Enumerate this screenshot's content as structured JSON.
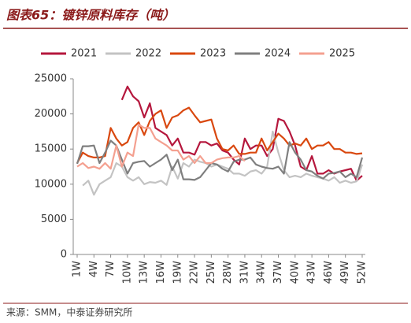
{
  "chart_data": {
    "type": "line",
    "title": "图表65：镀锌原料库存（吨）",
    "source": "来源：SMM，中泰证券研究所",
    "categories": [
      "1W",
      null,
      null,
      "4W",
      null,
      null,
      "7W",
      null,
      null,
      "10W",
      null,
      null,
      "13W",
      null,
      null,
      "16W",
      null,
      null,
      "19W",
      null,
      null,
      "22W",
      null,
      null,
      "25W",
      null,
      null,
      "28W",
      null,
      null,
      "31W",
      null,
      null,
      "34W",
      null,
      null,
      "37W",
      null,
      null,
      "40W",
      null,
      null,
      "43W",
      null,
      null,
      "46W",
      null,
      null,
      "49W",
      null,
      null,
      "52W"
    ],
    "ylim": [
      0,
      25000
    ],
    "yticks": [
      0,
      5000,
      10000,
      15000,
      20000,
      25000
    ],
    "series": [
      {
        "name": "2021",
        "color": "#b5173d",
        "values": [
          null,
          null,
          null,
          null,
          null,
          null,
          null,
          null,
          22000,
          23900,
          22500,
          21800,
          19500,
          21500,
          18000,
          17500,
          17000,
          15500,
          16500,
          14500,
          14500,
          14200,
          16000,
          16000,
          15500,
          15800,
          14800,
          14500,
          13500,
          12800,
          16500,
          15000,
          15500,
          15500,
          14000,
          15000,
          19300,
          19000,
          17500,
          15500,
          12500,
          12000,
          14000,
          11500,
          11500,
          12000,
          11500,
          11800,
          12000,
          12200,
          10500,
          11200
        ]
      },
      {
        "name": "2022",
        "color": "#c3c3c3",
        "values": [
          null,
          9800,
          10500,
          8500,
          10000,
          10500,
          11000,
          13000,
          12500,
          11000,
          10500,
          11000,
          10000,
          10300,
          10200,
          10500,
          9900,
          12500,
          10800,
          13000,
          12500,
          13500,
          13200,
          13000,
          12500,
          12800,
          12500,
          12200,
          11500,
          11500,
          11200,
          11800,
          12000,
          11500,
          12500,
          17500,
          14500,
          12000,
          11000,
          11200,
          11000,
          11500,
          11200,
          11000,
          10800,
          10500,
          11000,
          10200,
          10500,
          10200,
          10400,
          12800
        ]
      },
      {
        "name": "2023",
        "color": "#d9480f",
        "values": [
          13000,
          14500,
          14000,
          13800,
          13800,
          14000,
          18000,
          16500,
          15500,
          16000,
          18000,
          18800,
          17000,
          19000,
          20000,
          20500,
          18000,
          19500,
          19800,
          20500,
          20900,
          19800,
          18800,
          19000,
          19200,
          16500,
          15000,
          14800,
          15500,
          14300,
          14300,
          14500,
          14500,
          16500,
          14800,
          16000,
          17200,
          16500,
          15500,
          15800,
          15500,
          16500,
          15000,
          15500,
          15500,
          16000,
          15000,
          15000,
          14500,
          14500,
          14300,
          14400
        ]
      },
      {
        "name": "2024",
        "color": "#7f7f7f",
        "values": [
          12900,
          15400,
          15400,
          15500,
          13000,
          14500,
          16200,
          15500,
          13500,
          11500,
          13000,
          13200,
          13300,
          12500,
          13000,
          13500,
          14200,
          12000,
          13500,
          10700,
          10700,
          10600,
          11000,
          12000,
          13000,
          12800,
          12200,
          11800,
          13200,
          13500,
          13500,
          13800,
          12800,
          12500,
          12300,
          12200,
          12500,
          11500,
          16000,
          14500,
          13500,
          12000,
          11800,
          11200,
          10800,
          11500,
          11600,
          11800,
          11000,
          11500,
          11000,
          13800
        ]
      },
      {
        "name": "2025",
        "color": "#f4a090",
        "values": [
          12500,
          13000,
          12300,
          12500,
          12200,
          13000,
          12200,
          15500,
          12500,
          14500,
          14000,
          18500,
          18000,
          18000,
          16500,
          16000,
          15500,
          14800,
          14800,
          13500,
          14000,
          13000,
          14000,
          13000,
          13000,
          13500,
          13700,
          13800,
          13800,
          14000,
          13300,
          null,
          null,
          null,
          null,
          null,
          null,
          null,
          null,
          null,
          null,
          null,
          null,
          null,
          null,
          null,
          null,
          null,
          null,
          null,
          null,
          null
        ]
      }
    ]
  }
}
